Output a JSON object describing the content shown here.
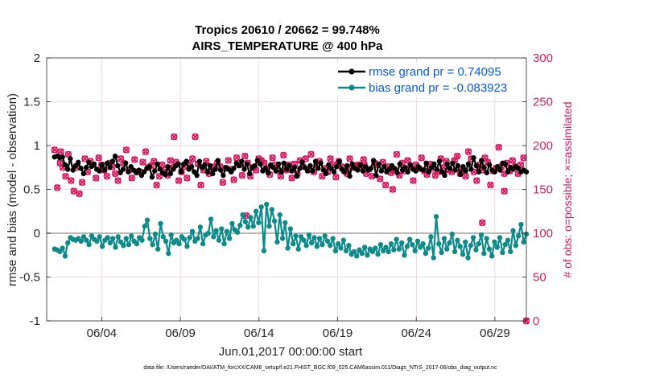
{
  "chart_data": {
    "type": "line",
    "title_line1": "Tropics 20610 / 20662 = 99.748%",
    "title_line2": "AIRS_TEMPERATURE @ 400 hPa",
    "xlabel": "Jun.01,2017 00:00:00 start",
    "ylabel_left": "rmse and bias (model - observation)",
    "ylabel_right": "# of obs: o=possible; ×=assimilated",
    "ylim_left": [
      -1,
      2
    ],
    "ylim_right": [
      0,
      300
    ],
    "xlim": [
      0.5,
      31.0
    ],
    "yticks_left": [
      "2",
      "1.5",
      "1",
      "0.5",
      "0",
      "-0.5",
      "-1"
    ],
    "yticks_right": [
      "300",
      "250",
      "200",
      "150",
      "100",
      "50",
      "0"
    ],
    "xticks": [
      {
        "label": "06/04",
        "day": 4
      },
      {
        "label": "06/09",
        "day": 9
      },
      {
        "label": "06/14",
        "day": 14
      },
      {
        "label": "06/19",
        "day": 19
      },
      {
        "label": "06/24",
        "day": 24
      },
      {
        "label": "06/29",
        "day": 29
      }
    ],
    "colors": {
      "rmse": "#000000",
      "bias": "#0e8a8a",
      "obs": "#d6175e",
      "zero_line": "#b8b8b8",
      "grid": "#e6b3c8",
      "legend_text": "#0a5ad6"
    },
    "series": [
      {
        "name": "rmse",
        "legend": "rmse grand pr = 0.74095",
        "values": [
          0.87,
          0.88,
          0.86,
          0.87,
          0.78,
          0.73,
          0.85,
          0.72,
          0.77,
          0.81,
          0.74,
          0.68,
          0.75,
          0.81,
          0.76,
          0.79,
          0.73,
          0.71,
          0.78,
          0.72,
          0.8,
          0.75,
          0.82,
          0.88,
          0.77,
          0.69,
          0.73,
          0.8,
          0.7,
          0.76,
          0.72,
          0.69,
          0.72,
          0.66,
          0.7,
          0.74,
          0.76,
          0.64,
          0.71,
          0.79,
          0.73,
          0.69,
          0.67,
          0.76,
          0.68,
          0.73,
          0.77,
          0.79,
          0.7,
          0.79,
          0.82,
          0.73,
          0.76,
          0.7,
          0.66,
          0.82,
          0.75,
          0.78,
          0.7,
          0.77,
          0.68,
          0.73,
          0.83,
          0.72,
          0.66,
          0.75,
          0.73,
          0.7,
          0.74,
          0.8,
          0.77,
          0.82,
          0.73,
          0.79,
          0.68,
          0.75,
          0.77,
          0.83,
          0.79,
          0.71,
          0.74,
          0.69,
          0.78,
          0.75,
          0.71,
          0.79,
          0.7,
          0.8,
          0.73,
          0.77,
          0.71,
          0.75,
          0.65,
          0.74,
          0.81,
          0.75,
          0.71,
          0.77,
          0.71,
          0.82,
          0.74,
          0.8,
          0.72,
          0.68,
          0.78,
          0.74,
          0.7,
          0.76,
          0.82,
          0.73,
          0.7,
          0.77,
          0.65,
          0.79,
          0.74,
          0.72,
          0.78,
          0.71,
          0.76,
          0.72,
          0.74,
          0.83,
          0.66,
          0.79,
          0.71,
          0.76,
          0.7,
          0.73,
          0.77,
          0.74,
          0.69,
          0.79,
          0.72,
          0.75,
          0.7,
          0.78,
          0.73,
          0.71,
          0.76,
          0.73,
          0.72,
          0.8,
          0.7,
          0.75,
          0.79,
          0.73,
          0.82,
          0.7,
          0.66,
          0.79,
          0.74,
          0.8,
          0.72,
          0.77,
          0.67,
          0.76,
          0.71,
          0.79,
          0.73,
          0.86,
          0.77,
          0.7,
          0.83,
          0.75,
          0.69,
          0.78,
          0.72,
          0.7,
          0.76,
          0.72,
          0.8,
          0.79,
          0.7,
          0.75,
          0.73,
          0.76,
          0.74,
          0.7,
          0.72,
          0.7
        ]
      },
      {
        "name": "bias",
        "legend": "bias grand pr = -0.083923",
        "values": [
          -0.18,
          -0.19,
          -0.21,
          -0.17,
          -0.26,
          -0.11,
          -0.05,
          -0.07,
          -0.08,
          -0.06,
          -0.09,
          -0.04,
          -0.08,
          -0.13,
          -0.03,
          -0.07,
          -0.09,
          -0.04,
          -0.15,
          -0.08,
          -0.05,
          -0.11,
          -0.06,
          -0.16,
          -0.04,
          -0.1,
          -0.14,
          -0.06,
          -0.13,
          -0.03,
          -0.09,
          -0.12,
          -0.05,
          -0.08,
          0.08,
          0.15,
          -0.06,
          -0.13,
          -0.01,
          -0.18,
          0.11,
          -0.04,
          -0.09,
          -0.23,
          -0.02,
          -0.11,
          -0.08,
          -0.12,
          -0.04,
          -0.07,
          -0.15,
          -0.05,
          0.02,
          -0.09,
          -0.06,
          0.07,
          -0.12,
          -0.02,
          0.0,
          0.16,
          -0.04,
          0.03,
          -0.08,
          0.05,
          -0.12,
          0.02,
          -0.06,
          0.11,
          0.04,
          0.01,
          0.09,
          0.21,
          0.13,
          0.07,
          0.18,
          0.08,
          0.25,
          0.12,
          0.3,
          -0.2,
          0.33,
          0.08,
          0.27,
          0.14,
          -0.1,
          0.21,
          -0.06,
          0.12,
          -0.17,
          0.05,
          -0.12,
          -0.03,
          -0.18,
          -0.04,
          -0.08,
          -0.14,
          -0.02,
          -0.11,
          -0.05,
          -0.15,
          -0.06,
          -0.13,
          -0.03,
          -0.09,
          -0.14,
          -0.06,
          -0.2,
          -0.12,
          -0.17,
          -0.08,
          -0.2,
          -0.14,
          -0.24,
          -0.21,
          -0.26,
          -0.19,
          -0.23,
          -0.16,
          -0.25,
          -0.18,
          -0.21,
          -0.17,
          -0.24,
          -0.13,
          -0.2,
          -0.16,
          -0.21,
          -0.12,
          -0.19,
          -0.07,
          -0.18,
          -0.11,
          -0.25,
          -0.15,
          -0.07,
          -0.13,
          -0.2,
          -0.09,
          -0.16,
          -0.12,
          -0.23,
          -0.17,
          -0.04,
          -0.28,
          0.19,
          -0.12,
          -0.22,
          -0.06,
          -0.18,
          -0.11,
          -0.01,
          -0.21,
          -0.08,
          -0.15,
          -0.24,
          -0.1,
          -0.28,
          -0.14,
          -0.05,
          -0.19,
          -0.12,
          -0.02,
          -0.23,
          -0.06,
          -0.18,
          -0.26,
          -0.1,
          -0.16,
          -0.05,
          -0.22,
          -0.13,
          -0.08,
          -0.21,
          0.03,
          -0.14,
          -0.03,
          0.1,
          -0.1,
          -0.01
        ]
      },
      {
        "name": "obs_assimilated",
        "axis": "right",
        "values": [
          195,
          152,
          180,
          175,
          165,
          190,
          160,
          148,
          175,
          145,
          158,
          185,
          170,
          182,
          178,
          163,
          186,
          178,
          172,
          165,
          180,
          176,
          168,
          160,
          185,
          180,
          195,
          172,
          163,
          184,
          170,
          170,
          181,
          193,
          175,
          177,
          182,
          155,
          165,
          178,
          172,
          166,
          183,
          175,
          181,
          160,
          170,
          176,
          163,
          180,
          185,
          210,
          179,
          155,
          172,
          182,
          168,
          171,
          176,
          180,
          176,
          158,
          174,
          183,
          173,
          161,
          186,
          178,
          166,
          188,
          180,
          165,
          175,
          172,
          185,
          183,
          180,
          174,
          167,
          186,
          178,
          171,
          165,
          189,
          172,
          178,
          163,
          179,
          168,
          183,
          176,
          185,
          172,
          190,
          170,
          178,
          182,
          165,
          174,
          170,
          185,
          178,
          164,
          182,
          176,
          171,
          168,
          185,
          175,
          177,
          178,
          176,
          184,
          168,
          173,
          165,
          180,
          178,
          162,
          181,
          155,
          176,
          169,
          172,
          190,
          166,
          180,
          171,
          183,
          176,
          160,
          178,
          174,
          186,
          171,
          167,
          179,
          174,
          166,
          170,
          185,
          175,
          182,
          172,
          170,
          183,
          188,
          168,
          172,
          165,
          193,
          185,
          170,
          160,
          178,
          172,
          186,
          181,
          155,
          171,
          174,
          198,
          176,
          168,
          180,
          171,
          183,
          176,
          168,
          178,
          186,
          0
        ]
      }
    ],
    "obs_extra_points": [
      {
        "day": 1.4,
        "count": 193
      },
      {
        "day": 8.6,
        "count": 210
      },
      {
        "day": 13.2,
        "count": 120
      },
      {
        "day": 20.7,
        "count": 178
      },
      {
        "day": 22.5,
        "count": 150
      },
      {
        "day": 28.2,
        "count": 112
      },
      {
        "day": 29.6,
        "count": 148
      },
      {
        "day": 31.0,
        "count": 0
      }
    ]
  },
  "footnote": "data file: /Users/raeder/DAI/ATM_forcXX/CAM6_setup/f.e21.FHIST_BGC.f09_025.CAM6assim.011/Diags_NTrS_2017-06/obs_diag_output.nc"
}
